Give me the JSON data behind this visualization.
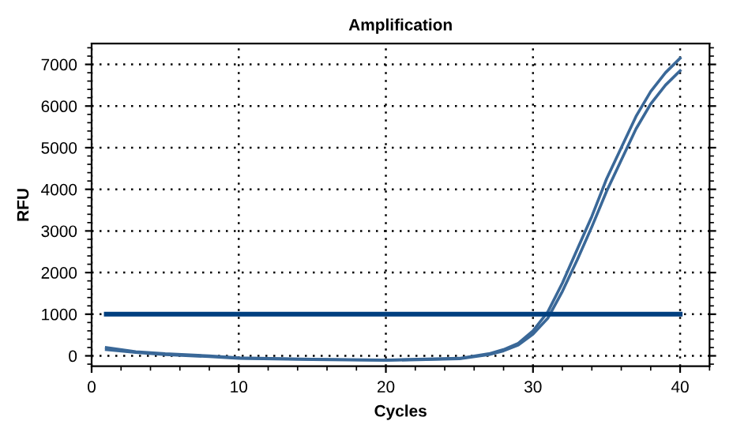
{
  "chart_data": {
    "type": "line",
    "title": "Amplification",
    "xlabel": "Cycles",
    "ylabel": "RFU",
    "xlim": [
      0,
      42
    ],
    "xticks": [
      0,
      10,
      20,
      30,
      40
    ],
    "ylim": [
      -250,
      7500
    ],
    "yticks": [
      0,
      1000,
      2000,
      3000,
      4000,
      5000,
      6000,
      7000
    ],
    "grid": true,
    "legend": false,
    "marker": "none",
    "line_style": "solid",
    "series": [
      {
        "color": "#3a6898",
        "x": [
          1,
          3,
          5,
          8,
          10,
          15,
          20,
          25,
          27,
          28,
          29,
          30,
          31,
          32,
          33,
          34,
          35,
          36,
          37,
          38,
          39,
          40
        ],
        "values": [
          200,
          100,
          50,
          0,
          -50,
          -80,
          -100,
          -60,
          50,
          150,
          300,
          600,
          1050,
          1750,
          2550,
          3350,
          4250,
          5000,
          5750,
          6350,
          6800,
          7150
        ]
      },
      {
        "color": "#3a6898",
        "x": [
          1,
          3,
          5,
          8,
          10,
          15,
          20,
          25,
          27,
          28,
          29,
          30,
          31,
          32,
          33,
          34,
          35,
          36,
          37,
          38,
          39,
          40
        ],
        "values": [
          150,
          80,
          30,
          -20,
          -60,
          -90,
          -110,
          -70,
          30,
          120,
          260,
          520,
          900,
          1550,
          2300,
          3100,
          3950,
          4700,
          5450,
          6050,
          6500,
          6850
        ]
      },
      {
        "color": "#003f7f",
        "x": [
          1,
          40
        ],
        "values": [
          1000,
          1000
        ]
      }
    ]
  }
}
